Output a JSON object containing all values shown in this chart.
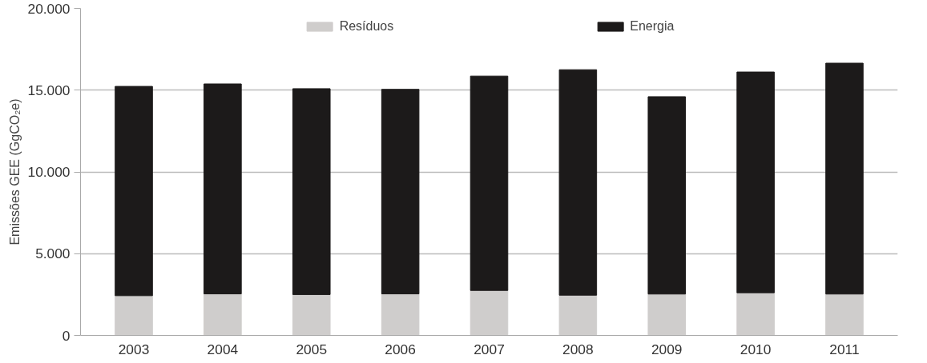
{
  "chart_data": {
    "type": "bar",
    "ylabel": "Emissões GEE (GgCO₂e)",
    "categories": [
      "2003",
      "2004",
      "2005",
      "2006",
      "2007",
      "2008",
      "2009",
      "2010",
      "2011"
    ],
    "stacked": true,
    "series": [
      {
        "name": "Resíduos",
        "color": "#cfcdcc",
        "values": [
          2430,
          2540,
          2500,
          2540,
          2750,
          2460,
          2530,
          2610,
          2530
        ]
      },
      {
        "name": "Energia",
        "color": "#1c1a1a",
        "values": [
          12800,
          12840,
          12590,
          12510,
          13110,
          13790,
          12070,
          13500,
          14120
        ]
      }
    ],
    "ylim": [
      0,
      20000
    ],
    "yticks": [
      {
        "value": 0,
        "label": "0"
      },
      {
        "value": 5000,
        "label": "5.000"
      },
      {
        "value": 10000,
        "label": "10.000"
      },
      {
        "value": 15000,
        "label": "15.000"
      },
      {
        "value": 20000,
        "label": "20.000"
      }
    ],
    "grid": "y",
    "legend": "top"
  }
}
